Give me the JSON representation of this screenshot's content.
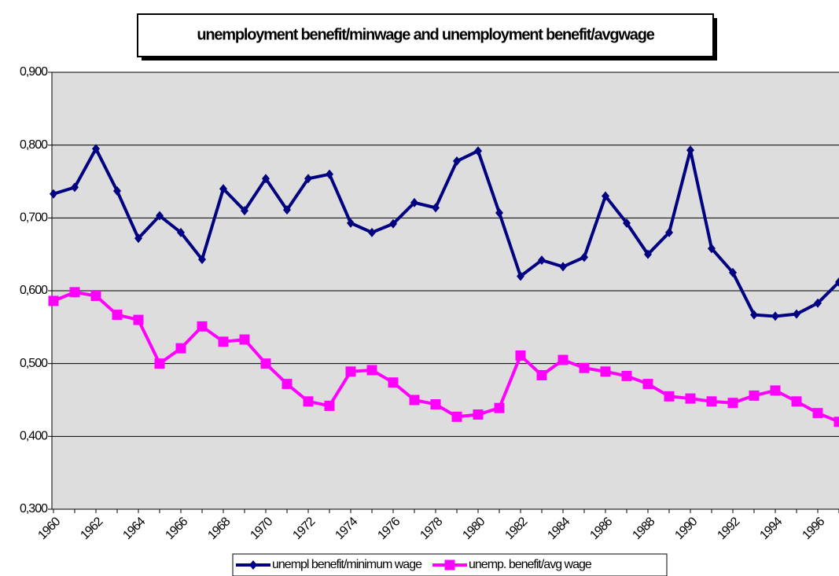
{
  "chart_data": {
    "type": "line",
    "title": "unemployment benefit/minwage and unemployment benefit/avgwage",
    "categories": [
      "1960",
      null,
      "1962",
      null,
      "1964",
      null,
      "1966",
      null,
      "1968",
      null,
      "1970",
      null,
      "1972",
      null,
      "1974",
      null,
      "1976",
      null,
      "1978",
      null,
      "1980",
      null,
      "1982",
      null,
      "1984",
      null,
      "1986",
      null,
      "1988",
      null,
      "1990",
      null,
      "1992",
      null,
      "1994",
      null,
      "1996",
      null
    ],
    "series": [
      {
        "name": "unempl benefit/minimum wage",
        "color": "#000080",
        "marker": "diamond",
        "values": [
          0.733,
          0.742,
          0.795,
          0.737,
          0.672,
          0.703,
          0.68,
          0.643,
          0.74,
          0.71,
          0.754,
          0.711,
          0.754,
          0.76,
          0.693,
          0.68,
          0.692,
          0.721,
          0.714,
          0.778,
          0.792,
          0.707,
          0.62,
          0.642,
          0.633,
          0.646,
          0.73,
          0.693,
          0.65,
          0.68,
          0.793,
          0.658,
          0.625,
          0.567,
          0.565,
          0.568,
          0.583,
          0.612
        ]
      },
      {
        "name": "unemp. benefit/avg wage",
        "color": "#ff00ff",
        "marker": "square",
        "values": [
          0.586,
          0.598,
          0.593,
          0.567,
          0.56,
          0.5,
          0.521,
          0.551,
          0.53,
          0.533,
          0.5,
          0.472,
          0.448,
          0.442,
          0.489,
          0.491,
          0.474,
          0.45,
          0.444,
          0.427,
          0.43,
          0.439,
          0.511,
          0.484,
          0.505,
          0.494,
          0.489,
          0.483,
          0.472,
          0.455,
          0.452,
          0.448,
          0.446,
          0.456,
          0.463,
          0.448,
          0.432,
          0.42
        ]
      }
    ],
    "ylim": [
      0.3,
      0.9
    ],
    "yticks": [
      {
        "value": 0.3,
        "label": "0,300"
      },
      {
        "value": 0.4,
        "label": "0,400"
      },
      {
        "value": 0.5,
        "label": "0,500"
      },
      {
        "value": 0.6,
        "label": "0,600"
      },
      {
        "value": 0.7,
        "label": "0,700"
      },
      {
        "value": 0.8,
        "label": "0,800"
      },
      {
        "value": 0.9,
        "label": "0,900"
      }
    ],
    "grid": true,
    "legend": "bottom"
  }
}
